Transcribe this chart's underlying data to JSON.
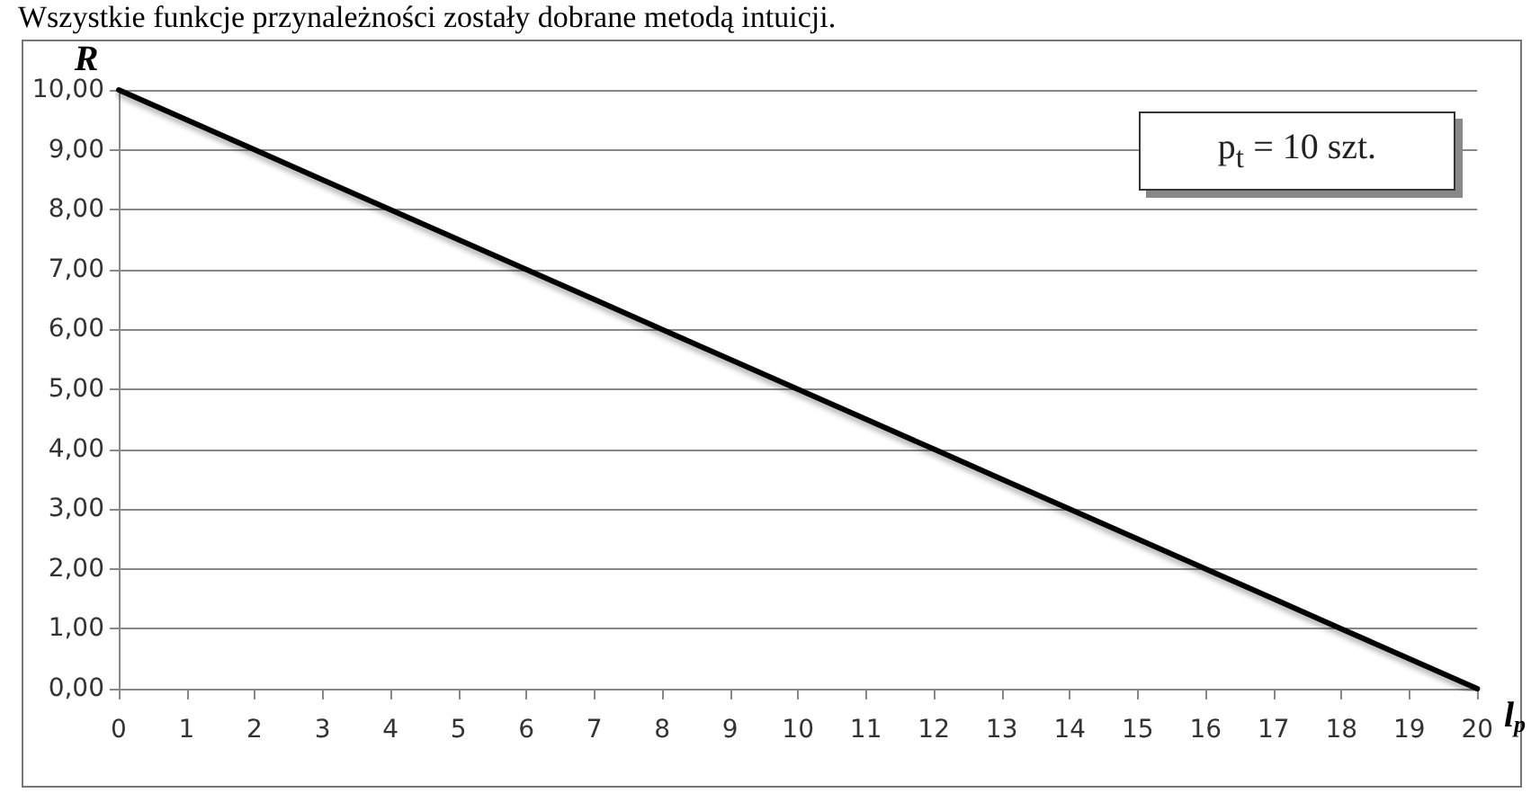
{
  "chart_data": {
    "type": "line",
    "title": "Wszystkie funkcje przynależności zostały dobrane metodą intuicji.",
    "ylabel": "R",
    "xlabel": "l$_{p}$",
    "annotations": [
      "p$_{t}$ = 10 szt."
    ],
    "x": [
      0,
      1,
      2,
      3,
      4,
      5,
      6,
      7,
      8,
      9,
      10,
      11,
      12,
      13,
      14,
      15,
      16,
      17,
      18,
      19,
      20
    ],
    "series": [
      {
        "color": "#000000",
        "values": [
          10,
          9.5,
          9,
          8.5,
          8,
          7.5,
          7,
          6.5,
          6,
          5.5,
          5,
          4.5,
          4,
          3.5,
          3,
          2.5,
          2,
          1.5,
          1,
          0.5,
          0
        ]
      }
    ],
    "xlim": [
      0,
      20
    ],
    "xticks": [
      0,
      1,
      2,
      3,
      4,
      5,
      6,
      7,
      8,
      9,
      10,
      11,
      12,
      13,
      14,
      15,
      16,
      17,
      18,
      19,
      20
    ],
    "ylim": [
      0,
      10
    ],
    "yticks": [
      {
        "value": 0,
        "label": "0,00"
      },
      {
        "value": 1,
        "label": "1,00"
      },
      {
        "value": 2,
        "label": "2,00"
      },
      {
        "value": 3,
        "label": "3,00"
      },
      {
        "value": 4,
        "label": "4,00"
      },
      {
        "value": 5,
        "label": "5,00"
      },
      {
        "value": 6,
        "label": "6,00"
      },
      {
        "value": 7,
        "label": "7,00"
      },
      {
        "value": 8,
        "label": "8,00"
      },
      {
        "value": 9,
        "label": "9,00"
      },
      {
        "value": 10,
        "label": "10,00"
      }
    ],
    "grid": "y",
    "marker": "none",
    "line_style": "solid"
  }
}
